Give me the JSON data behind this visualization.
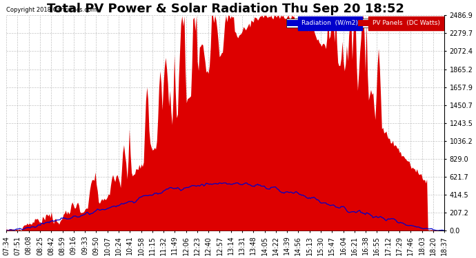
{
  "title": "Total PV Power & Solar Radiation Thu Sep 20 18:52",
  "copyright": "Copyright 2018 Cartronics.com",
  "ylabel_right_ticks": [
    0.0,
    207.2,
    414.5,
    621.7,
    829.0,
    1036.2,
    1243.5,
    1450.7,
    1657.9,
    1865.2,
    2072.4,
    2279.7,
    2486.9
  ],
  "ymax": 2486.9,
  "background_color": "#ffffff",
  "plot_bg_color": "#ffffff",
  "grid_color": "#aaaaaa",
  "red_fill_color": "#dd0000",
  "blue_line_color": "#0000cc",
  "legend_radiation_bg": "#0000cc",
  "legend_pv_bg": "#cc0000",
  "title_fontsize": 13,
  "tick_fontsize": 7,
  "x_tick_labels": [
    "07:34",
    "07:51",
    "08:08",
    "08:25",
    "08:42",
    "08:59",
    "09:16",
    "09:33",
    "09:50",
    "10:07",
    "10:24",
    "10:41",
    "10:58",
    "11:15",
    "11:32",
    "11:49",
    "12:06",
    "12:23",
    "12:40",
    "12:57",
    "13:14",
    "13:31",
    "13:48",
    "14:05",
    "14:22",
    "14:39",
    "14:56",
    "15:13",
    "15:30",
    "15:47",
    "16:04",
    "16:21",
    "16:38",
    "16:55",
    "17:12",
    "17:29",
    "17:46",
    "18:03",
    "18:20",
    "18:37"
  ]
}
